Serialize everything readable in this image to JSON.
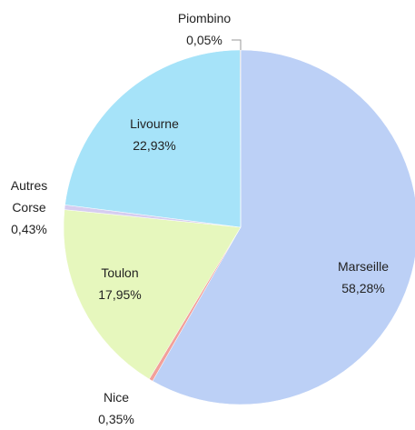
{
  "chart_data": {
    "type": "pie",
    "categories": [
      "Marseille",
      "Nice",
      "Toulon",
      "Autres Corse",
      "Livourne",
      "Piombino"
    ],
    "values": [
      58.28,
      0.35,
      17.95,
      0.43,
      22.93,
      0.05
    ],
    "value_labels": [
      "58,28%",
      "0,35%",
      "17,95%",
      "0,43%",
      "22,93%",
      "0,05%"
    ],
    "colors": [
      "#bcd0f6",
      "#f2a09a",
      "#e6f7bd",
      "#d6cdf0",
      "#a6e3f9",
      "#a0a0a0"
    ]
  }
}
